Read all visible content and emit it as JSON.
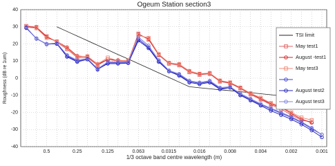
{
  "chart_data": {
    "type": "line",
    "title": "Ogeum Station section3",
    "x_label": "1/3 octave band centre wavelength (m)",
    "y_label": "Roughness (dB re 1um)",
    "categories": [
      null,
      null,
      "0.5",
      null,
      null,
      "0.25",
      null,
      null,
      "0.125",
      null,
      null,
      "0.063",
      null,
      null,
      "0.0315",
      null,
      null,
      "0.016",
      null,
      null,
      "0.008",
      null,
      null,
      "0.004",
      null,
      null,
      "0.002",
      null,
      null,
      "0.001"
    ],
    "ylim": [
      -40,
      40
    ],
    "yticks": [
      -40,
      -30,
      -20,
      -10,
      0,
      10,
      20,
      30,
      40
    ],
    "grid": true,
    "series": [
      {
        "name": "TSI limit",
        "color": "#222222",
        "marker": "none",
        "values": [
          null,
          null,
          null,
          30,
          27.3,
          24.6,
          21.9,
          19.2,
          16.5,
          13.8,
          11.2,
          8.5,
          5.8,
          3.1,
          0.4,
          -2.3,
          -5,
          -5.6,
          -6.2,
          -6.8,
          -7.3,
          -7.9,
          -8.5,
          -9.1,
          -9.7,
          -10.3,
          -10.8,
          -11.4,
          -12,
          null
        ]
      },
      {
        "name": "May test1",
        "color": "#e06060",
        "marker": "square",
        "values": [
          30.5,
          29.8,
          24.5,
          21,
          17,
          12,
          12,
          7.5,
          11,
          10,
          10,
          26,
          22.5,
          13.5,
          8.5,
          7.5,
          3.5,
          2,
          2.5,
          -2,
          -3,
          -6,
          -9.5,
          -12.5,
          -15.5,
          -18,
          -21.5,
          -24.5,
          -25.5,
          null
        ]
      },
      {
        "name": "August  -test1",
        "color": "#d42020",
        "marker": "circle",
        "values": [
          30,
          29.6,
          24,
          21.5,
          18,
          13,
          12.5,
          8,
          11,
          10.5,
          10,
          25.5,
          23,
          13.7,
          8.9,
          8,
          4,
          2.4,
          2.8,
          -1.6,
          -2.8,
          -5.7,
          -9,
          -12,
          -15,
          -17,
          -20.6,
          -24,
          -26,
          null
        ]
      },
      {
        "name": "May test3",
        "color": "#f08a78",
        "marker": "square",
        "values": [
          29.8,
          29.2,
          23.5,
          21.5,
          17.5,
          12.5,
          12.8,
          8.2,
          12,
          10.2,
          10.3,
          25,
          23.5,
          14,
          9,
          8.2,
          4.2,
          2.6,
          3,
          -1.4,
          -2.5,
          -5.5,
          -8.8,
          -11.5,
          -14.5,
          -16.5,
          -20,
          -23,
          -24.5,
          null
        ]
      },
      {
        "color": "#4040d0",
        "marker": "circle",
        "values": [
          29.5,
          23,
          20,
          20,
          13,
          10,
          11,
          5,
          9,
          9,
          9,
          23,
          18,
          10,
          4,
          2,
          -2,
          -3,
          -2,
          -6,
          -5.5,
          -9.5,
          -12.5,
          -15.5,
          -18,
          -20.5,
          -23,
          -26,
          -29.5,
          -33
        ]
      },
      {
        "name": "August test2",
        "color": "#2020b8",
        "marker": "circle",
        "values": [
          29.3,
          23.2,
          19.8,
          20.2,
          12.5,
          9.5,
          11,
          5.2,
          8.5,
          8.5,
          8.8,
          22,
          17.5,
          9.5,
          4,
          1.5,
          -2.5,
          -3.5,
          -2.5,
          -6.5,
          -5.5,
          -10,
          -13,
          -16,
          -19,
          -21.5,
          -24,
          -27,
          -30.5,
          -34.5
        ]
      },
      {
        "name": "August test3",
        "color": "#8080e0",
        "marker": "circle",
        "values": [
          29.8,
          23,
          20,
          20.5,
          13.5,
          10.5,
          11.5,
          5.5,
          9.5,
          9.5,
          9.5,
          24,
          19,
          10.5,
          4.5,
          2.5,
          -1.5,
          -2.5,
          -1.5,
          -5.5,
          -5,
          -9,
          -12,
          -15,
          -17.5,
          -20,
          -22.5,
          -25.5,
          -29,
          -33
        ]
      }
    ]
  }
}
